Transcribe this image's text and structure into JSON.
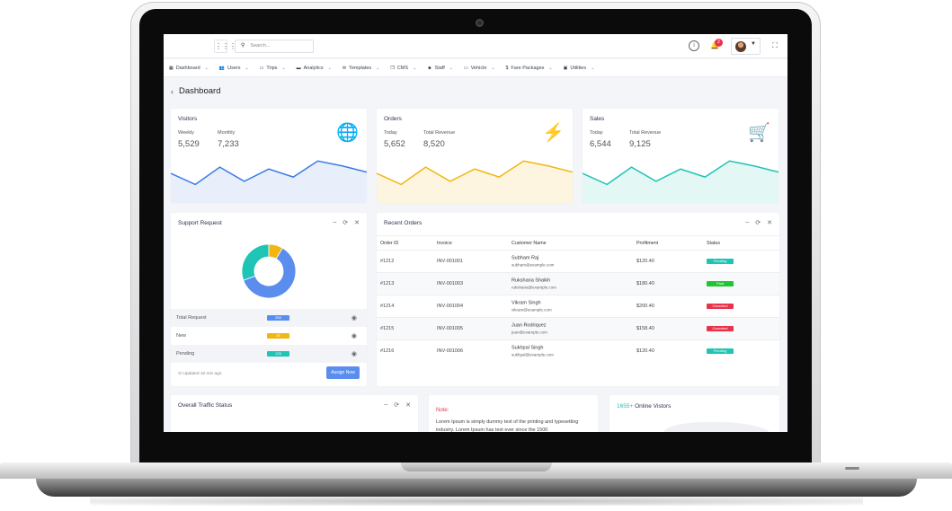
{
  "topbar": {
    "search_placeholder": "Search...",
    "notification_count": "2"
  },
  "nav": [
    {
      "label": "Dashboard",
      "icon": "grid-icon"
    },
    {
      "label": "Users",
      "icon": "users-icon"
    },
    {
      "label": "Trips",
      "icon": "bus-icon"
    },
    {
      "label": "Analytics",
      "icon": "chart-icon"
    },
    {
      "label": "Templates",
      "icon": "mail-icon"
    },
    {
      "label": "CMS",
      "icon": "copy-icon"
    },
    {
      "label": "Staff",
      "icon": "staff-icon"
    },
    {
      "label": "Vehicle",
      "icon": "car-icon"
    },
    {
      "label": "Fare Packages",
      "icon": "dollar-icon"
    },
    {
      "label": "Utilities",
      "icon": "tools-icon"
    }
  ],
  "page": {
    "title": "Dashboard"
  },
  "stats": [
    {
      "title": "Visitors",
      "left_label": "Weekly",
      "left_value": "5,529",
      "right_label": "Monthly",
      "right_value": "7,233",
      "icon": "globe-icon",
      "color": "#3a7be6",
      "fill": "#e8effb",
      "spark": [
        48,
        30,
        58,
        35,
        55,
        42,
        68,
        60,
        50
      ]
    },
    {
      "title": "Orders",
      "left_label": "Today",
      "left_value": "5,652",
      "right_label": "Total Revenue",
      "right_value": "8,520",
      "icon": "bolt-icon",
      "color": "#f2b610",
      "fill": "#fdf5df",
      "spark": [
        48,
        30,
        58,
        35,
        55,
        42,
        68,
        60,
        50
      ]
    },
    {
      "title": "Sales",
      "left_label": "Today",
      "left_value": "6,544",
      "right_label": "Total Revenue",
      "right_value": "9,125",
      "icon": "cart-icon",
      "color": "#1ec4b4",
      "fill": "#e3f7f5",
      "spark": [
        48,
        30,
        58,
        35,
        55,
        42,
        68,
        60,
        50
      ]
    }
  ],
  "support": {
    "title": "Support Request",
    "donut": [
      {
        "label": "Total Request",
        "value": 250,
        "color": "#5b8dee"
      },
      {
        "label": "New",
        "value": 35,
        "color": "#f2b610"
      },
      {
        "label": "Pending",
        "value": 125,
        "color": "#1ec4b4"
      }
    ],
    "rows": [
      {
        "label": "Total Request",
        "value": "250",
        "color": "#5b8dee"
      },
      {
        "label": "New",
        "value": "35",
        "color": "#f2b610"
      },
      {
        "label": "Pending",
        "value": "125",
        "color": "#1ec4b4"
      }
    ],
    "updated": "Updated 10 min ago",
    "assign_label": "Assign Now"
  },
  "orders": {
    "title": "Recent Orders",
    "columns": [
      "Order ID",
      "Invoice",
      "Customer Name",
      "Profitment",
      "Status"
    ],
    "rows": [
      {
        "id": "#1212",
        "invoice": "INV-001001",
        "name": "Subham Raj",
        "email": "subham@example.com",
        "amount": "$120.40",
        "status": "Pending",
        "color": "#1ec4b4"
      },
      {
        "id": "#1213",
        "invoice": "INV-001003",
        "name": "Rukshana Shaikh",
        "email": "rukshana@example.com",
        "amount": "$180.40",
        "status": "Paid",
        "color": "#21c534"
      },
      {
        "id": "#1214",
        "invoice": "INV-001004",
        "name": "Vikram Singh",
        "email": "vikram@example.com",
        "amount": "$200.40",
        "status": "Canceled",
        "color": "#e9334b"
      },
      {
        "id": "#1215",
        "invoice": "INV-001005",
        "name": "Juan Rodriquez",
        "email": "juan@example.com",
        "amount": "$158.40",
        "status": "Canceled",
        "color": "#e9334b"
      },
      {
        "id": "#1216",
        "invoice": "INV-001006",
        "name": "Sukhpal Singh",
        "email": "sukhpal@example.com",
        "amount": "$120.40",
        "status": "Pending",
        "color": "#1ec4b4"
      }
    ]
  },
  "traffic": {
    "title": "Overall Traffic Status"
  },
  "note": {
    "label": "Note:",
    "text": "Lorem Ipsum is simply dummy text of the printing and typesetting industry. Lorem Ipsum has text ever since the 1500"
  },
  "online": {
    "count": "1655+",
    "title": "Online Vistors"
  }
}
